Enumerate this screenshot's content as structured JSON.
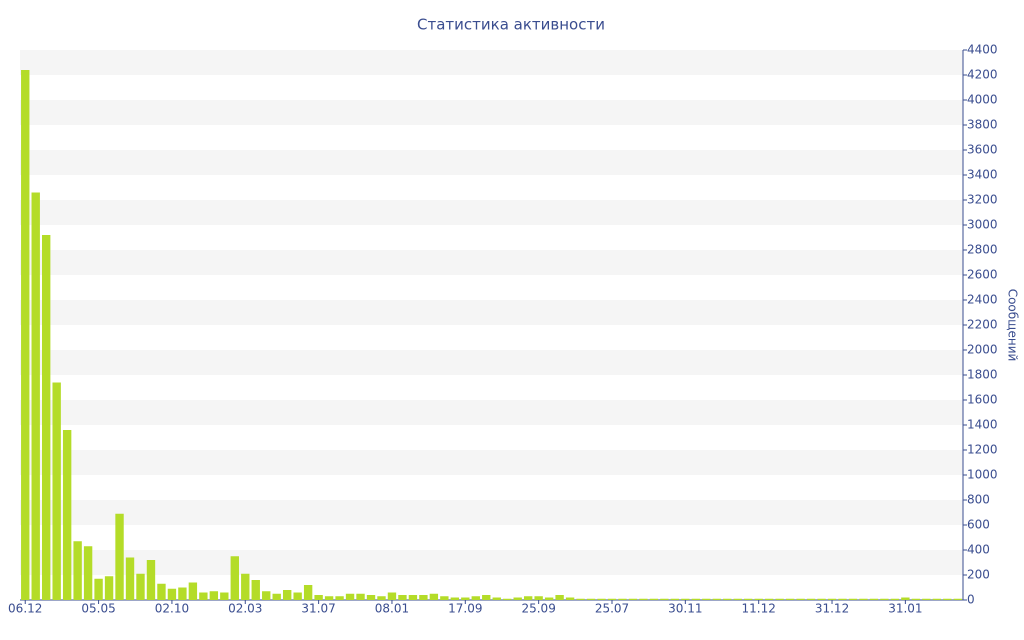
{
  "chart_data": {
    "type": "bar",
    "title": "Статистика активности",
    "y_label": "Сообщений",
    "color": "#b4dc28",
    "categories": [
      "06.12",
      null,
      null,
      null,
      null,
      null,
      null,
      "05.05",
      null,
      null,
      null,
      null,
      null,
      null,
      "02.10",
      null,
      null,
      null,
      null,
      null,
      null,
      "02.03",
      null,
      null,
      null,
      null,
      null,
      null,
      "31.07",
      null,
      null,
      null,
      null,
      null,
      null,
      "08.01",
      null,
      null,
      null,
      null,
      null,
      null,
      "17.09",
      null,
      null,
      null,
      null,
      null,
      null,
      "25.09",
      null,
      null,
      null,
      null,
      null,
      null,
      "25.07",
      null,
      null,
      null,
      null,
      null,
      null,
      "30.11",
      null,
      null,
      null,
      null,
      null,
      null,
      "11.12",
      null,
      null,
      null,
      null,
      null,
      null,
      "31.12",
      null,
      null,
      null,
      null,
      null,
      null,
      "31.01",
      null,
      null,
      null,
      null,
      null
    ],
    "values": [
      4240,
      3260,
      2920,
      1740,
      1360,
      470,
      430,
      170,
      190,
      690,
      340,
      210,
      320,
      130,
      90,
      100,
      140,
      60,
      70,
      60,
      350,
      210,
      160,
      70,
      50,
      80,
      60,
      120,
      40,
      30,
      30,
      50,
      50,
      40,
      30,
      60,
      40,
      40,
      40,
      50,
      30,
      20,
      20,
      30,
      40,
      20,
      10,
      20,
      30,
      30,
      20,
      40,
      20,
      10,
      10,
      10,
      10,
      10,
      10,
      10,
      10,
      10,
      10,
      10,
      10,
      10,
      10,
      10,
      10,
      10,
      10,
      10,
      10,
      10,
      10,
      10,
      10,
      10,
      10,
      10,
      10,
      10,
      10,
      10,
      20,
      10,
      10,
      10,
      10,
      10
    ],
    "ylim": [
      0,
      4400
    ],
    "yticks": [
      0,
      200,
      400,
      600,
      800,
      1000,
      1200,
      1400,
      1600,
      1800,
      2000,
      2200,
      2400,
      2600,
      2800,
      3000,
      3200,
      3400,
      3600,
      3800,
      4000,
      4200,
      4400
    ],
    "grid": true
  }
}
